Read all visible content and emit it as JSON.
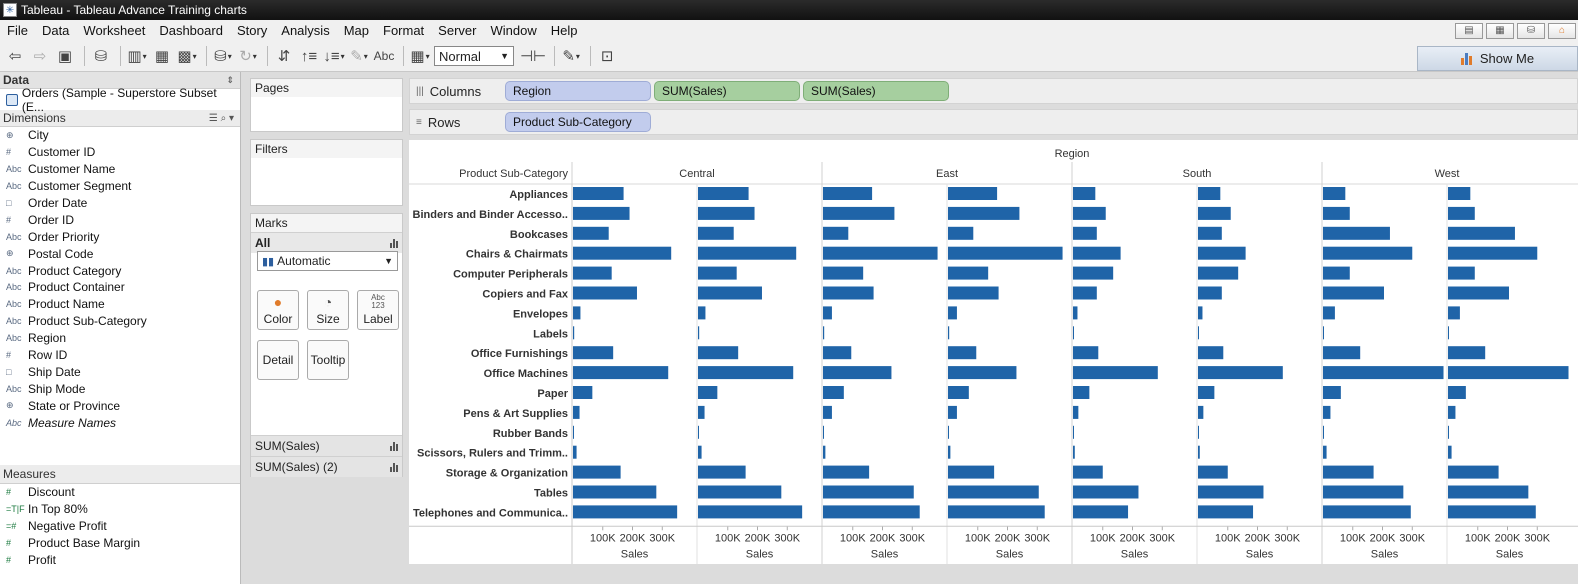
{
  "window": {
    "title": "Tableau - Tableau Advance Training charts"
  },
  "menu": [
    "File",
    "Data",
    "Worksheet",
    "Dashboard",
    "Story",
    "Analysis",
    "Map",
    "Format",
    "Server",
    "Window",
    "Help"
  ],
  "toolbar": {
    "fit_value": "Normal",
    "abc_label": "Abc",
    "show_me_label": "Show Me"
  },
  "data_pane": {
    "header": "Data",
    "source": "Orders (Sample - Superstore Subset (E...",
    "dimensions_header": "Dimensions",
    "dimensions": [
      {
        "icon": "globe-icon",
        "glyph": "⊕",
        "label": "City"
      },
      {
        "icon": "number-icon",
        "glyph": "#",
        "label": "Customer ID"
      },
      {
        "icon": "text-icon",
        "glyph": "Abc",
        "label": "Customer Name"
      },
      {
        "icon": "text-icon",
        "glyph": "Abc",
        "label": "Customer Segment"
      },
      {
        "icon": "calendar-icon",
        "glyph": "□",
        "label": "Order Date"
      },
      {
        "icon": "number-icon",
        "glyph": "#",
        "label": "Order ID"
      },
      {
        "icon": "text-icon",
        "glyph": "Abc",
        "label": "Order Priority"
      },
      {
        "icon": "globe-icon",
        "glyph": "⊕",
        "label": "Postal Code"
      },
      {
        "icon": "text-icon",
        "glyph": "Abc",
        "label": "Product Category"
      },
      {
        "icon": "text-icon",
        "glyph": "Abc",
        "label": "Product Container"
      },
      {
        "icon": "text-icon",
        "glyph": "Abc",
        "label": "Product Name"
      },
      {
        "icon": "text-icon",
        "glyph": "Abc",
        "label": "Product Sub-Category"
      },
      {
        "icon": "text-icon",
        "glyph": "Abc",
        "label": "Region"
      },
      {
        "icon": "number-icon",
        "glyph": "#",
        "label": "Row ID"
      },
      {
        "icon": "calendar-icon",
        "glyph": "□",
        "label": "Ship Date"
      },
      {
        "icon": "text-icon",
        "glyph": "Abc",
        "label": "Ship Mode"
      },
      {
        "icon": "globe-icon",
        "glyph": "⊕",
        "label": "State or Province"
      },
      {
        "icon": "text-icon",
        "glyph": "Abc",
        "label": "Measure Names"
      }
    ],
    "measures_header": "Measures",
    "measures": [
      {
        "icon": "number-icon",
        "glyph": "#",
        "label": "Discount"
      },
      {
        "icon": "boolean-icon",
        "glyph": "=T|F",
        "label": "In Top 80%"
      },
      {
        "icon": "number-icon",
        "glyph": "=#",
        "label": "Negative Profit"
      },
      {
        "icon": "number-icon",
        "glyph": "#",
        "label": "Product Base Margin"
      },
      {
        "icon": "number-icon",
        "glyph": "#",
        "label": "Profit"
      }
    ]
  },
  "cards": {
    "pages": "Pages",
    "filters": "Filters",
    "marks": "Marks",
    "marks_all": "All",
    "mark_type": "Automatic",
    "buttons": {
      "color": "Color",
      "size": "Size",
      "label": "Label",
      "detail": "Detail",
      "tooltip": "Tooltip",
      "label_icon": "Abc 123"
    },
    "marks_sum1": "SUM(Sales)",
    "marks_sum2": "SUM(Sales) (2)"
  },
  "shelves": {
    "columns_label": "Columns",
    "columns_pills": [
      "Region",
      "SUM(Sales)",
      "SUM(Sales)"
    ],
    "rows_label": "Rows",
    "rows_pills": [
      "Product Sub-Category"
    ]
  },
  "colors": {
    "bar": "#1f64a8",
    "pill_blue": "#c2cced",
    "pill_green": "#a6cf9f"
  },
  "chart_data": {
    "type": "bar",
    "orientation": "horizontal",
    "column_header": "Region",
    "row_header": "Product Sub-Category",
    "regions": [
      "Central",
      "East",
      "South",
      "West"
    ],
    "categories": [
      "Appliances",
      "Binders and Binder Accesso..",
      "Bookcases",
      "Chairs & Chairmats",
      "Computer Peripherals",
      "Copiers and Fax",
      "Envelopes",
      "Labels",
      "Office Furnishings",
      "Office Machines",
      "Paper",
      "Pens & Art Supplies",
      "Rubber Bands",
      "Scissors, Rulers and Trimm..",
      "Storage & Organization",
      "Tables",
      "Telephones and Communica.."
    ],
    "x_ticks": [
      "100K",
      "200K",
      "300K"
    ],
    "x_label": "Sales",
    "xlim": [
      0,
      410000
    ],
    "series": [
      {
        "region": "Central",
        "values": [
          170000,
          190000,
          120000,
          330000,
          130000,
          215000,
          25000,
          4000,
          135000,
          320000,
          65000,
          22000,
          2500,
          12000,
          160000,
          280000,
          350000
        ]
      },
      {
        "region": "East",
        "values": [
          165000,
          240000,
          85000,
          385000,
          135000,
          170000,
          30000,
          4000,
          95000,
          230000,
          70000,
          30000,
          2000,
          8000,
          155000,
          305000,
          325000
        ]
      },
      {
        "region": "South",
        "values": [
          75000,
          110000,
          80000,
          160000,
          135000,
          80000,
          15000,
          3000,
          85000,
          285000,
          55000,
          18000,
          1500,
          6000,
          100000,
          220000,
          185000
        ]
      },
      {
        "region": "West",
        "values": [
          75000,
          90000,
          225000,
          300000,
          90000,
          205000,
          40000,
          3000,
          125000,
          405000,
          60000,
          25000,
          1500,
          12000,
          170000,
          270000,
          295000
        ]
      }
    ]
  }
}
